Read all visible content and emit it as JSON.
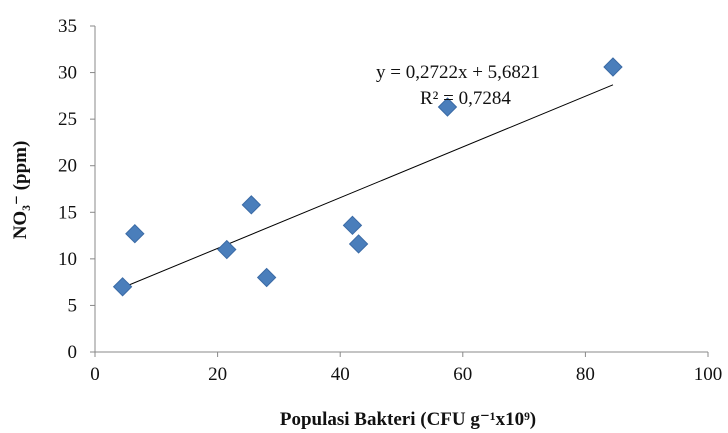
{
  "chart_data": {
    "type": "scatter",
    "xlabel": "Populasi Bakteri (CFU g⁻¹x10⁹)",
    "ylabel": "NO₃⁻ (ppm)",
    "xlim": [
      0,
      100
    ],
    "ylim": [
      0,
      35
    ],
    "x_ticks": [
      "0",
      "20",
      "40",
      "60",
      "80",
      "100"
    ],
    "y_ticks": [
      "0",
      "5",
      "10",
      "15",
      "20",
      "25",
      "30",
      "35"
    ],
    "grid": false,
    "marker": "diamond",
    "marker_color": "#4a7ebb",
    "points": [
      {
        "x": 4.5,
        "y": 7.0
      },
      {
        "x": 6.5,
        "y": 12.7
      },
      {
        "x": 21.5,
        "y": 11.0
      },
      {
        "x": 25.5,
        "y": 15.8
      },
      {
        "x": 28.0,
        "y": 8.0
      },
      {
        "x": 42.0,
        "y": 13.6
      },
      {
        "x": 43.0,
        "y": 11.6
      },
      {
        "x": 57.5,
        "y": 26.3
      },
      {
        "x": 84.5,
        "y": 30.6
      }
    ],
    "trendline": {
      "type": "linear",
      "slope": 0.2722,
      "intercept": 5.6821,
      "equation": "y = 0,2722x + 5,6821",
      "r_squared": "R² = 0,7284"
    }
  }
}
